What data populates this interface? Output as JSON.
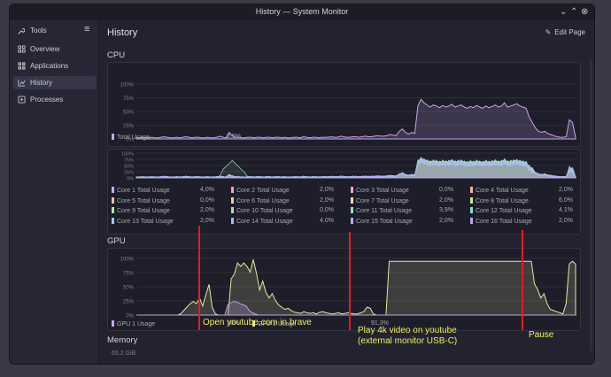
{
  "window": {
    "title": "History — System Monitor"
  },
  "sidebar": {
    "tools_label": "Tools",
    "items": [
      {
        "label": "Overview",
        "icon": "overview-icon"
      },
      {
        "label": "Applications",
        "icon": "applications-icon"
      },
      {
        "label": "History",
        "icon": "history-icon",
        "active": true
      },
      {
        "label": "Processes",
        "icon": "processes-icon"
      }
    ]
  },
  "header": {
    "title": "History",
    "edit_label": "Edit Page"
  },
  "cpu": {
    "section_label": "CPU",
    "y_ticks": [
      "100%",
      "75%",
      "50%",
      "25%",
      "0%"
    ],
    "total_legend": {
      "label": "Total Usage",
      "value": "2,5%",
      "color": "#c9a5e8"
    },
    "small_y_ticks": [
      "100%",
      "75%",
      "50%",
      "25%",
      "0%"
    ],
    "cores": [
      {
        "label": "Core 1 Total Usage",
        "value": "4,0%",
        "color": "#d3a6f0"
      },
      {
        "label": "Core 2 Total Usage",
        "value": "2,0%",
        "color": "#f29ed6"
      },
      {
        "label": "Core 3 Total Usage",
        "value": "0,0%",
        "color": "#f3a8c4"
      },
      {
        "label": "Core 4 Total Usage",
        "value": "2,0%",
        "color": "#f4b3a3"
      },
      {
        "label": "Core 5 Total Usage",
        "value": "0,0%",
        "color": "#f2bd9a"
      },
      {
        "label": "Core 6 Total Usage",
        "value": "2,0%",
        "color": "#f0cf8e"
      },
      {
        "label": "Core 7 Total Usage",
        "value": "2,0%",
        "color": "#e7e290"
      },
      {
        "label": "Core 8 Total Usage",
        "value": "6,0%",
        "color": "#cfe796"
      },
      {
        "label": "Core 9 Total Usage",
        "value": "2,0%",
        "color": "#b6e7a0"
      },
      {
        "label": "Core 10 Total Usage",
        "value": "0,0%",
        "color": "#9ee6b0"
      },
      {
        "label": "Core 11 Total Usage",
        "value": "3,9%",
        "color": "#8fe3c6"
      },
      {
        "label": "Core 12 Total Usage",
        "value": "4,1%",
        "color": "#8fd9de"
      },
      {
        "label": "Core 13 Total Usage",
        "value": "2,0%",
        "color": "#92cde9"
      },
      {
        "label": "Core 14 Total Usage",
        "value": "4,0%",
        "color": "#9cc0f0"
      },
      {
        "label": "Core 15 Total Usage",
        "value": "2,0%",
        "color": "#aab3f3"
      },
      {
        "label": "Core 16 Total Usage",
        "value": "2,0%",
        "color": "#bba7f2"
      }
    ]
  },
  "gpu": {
    "section_label": "GPU",
    "y_ticks": [
      "100%",
      "75%",
      "50%",
      "25%",
      "0%"
    ],
    "legend": [
      {
        "label": "GPU 1 Usage",
        "value": "18%",
        "color": "#c9a5e8"
      },
      {
        "label": "GPU 2 Usage",
        "value": "91,3%",
        "color": "#e8e6a0"
      }
    ]
  },
  "memory": {
    "section_label": "Memory",
    "first_tick": "65,2 GiB"
  },
  "annotations": [
    {
      "text": "Open youtube.com in brave"
    },
    {
      "text": "Play 4k video on youtube\n(external monitor USB-C)"
    },
    {
      "text": "Pause"
    }
  ],
  "colors": {
    "cpu_line": "#c9a5e8",
    "gpu1_line": "#b9a2e0",
    "gpu2_line": "#e8e6a0",
    "annotation_line": "#e51b25",
    "annotation_text": "#f2ee5e"
  },
  "chart_data": [
    {
      "type": "area",
      "title": "CPU",
      "series": [
        {
          "name": "Total Usage",
          "values": [
            2,
            2,
            3,
            2,
            2,
            3,
            2,
            2,
            3,
            4,
            3,
            2,
            2,
            3,
            2,
            3,
            4,
            3,
            2,
            3,
            3,
            2,
            2,
            3,
            2,
            2,
            3,
            5,
            3,
            2,
            12,
            6,
            3,
            3,
            2,
            2,
            3,
            3,
            2,
            3,
            3,
            2,
            3,
            3,
            2,
            3,
            3,
            2,
            3,
            2,
            2,
            3,
            3,
            2,
            4,
            3,
            2,
            3,
            3,
            2,
            3,
            3,
            3,
            4,
            3,
            3,
            5,
            4,
            3,
            3,
            4,
            4,
            3,
            4,
            5,
            4,
            4,
            5,
            6,
            5,
            5,
            6,
            8,
            7,
            6,
            14,
            18,
            12,
            9,
            12,
            10,
            60,
            72,
            66,
            62,
            58,
            62,
            60,
            57,
            61,
            58,
            60,
            63,
            58,
            60,
            62,
            58,
            56,
            59,
            57,
            61,
            58,
            56,
            60,
            57,
            59,
            62,
            58,
            60,
            66,
            58,
            60,
            62,
            64,
            60,
            58,
            56,
            40,
            30,
            20,
            14,
            12,
            14,
            10,
            8,
            6,
            4,
            3,
            3,
            4,
            35,
            30,
            3
          ]
        }
      ],
      "ylim": [
        0,
        100
      ]
    },
    {
      "type": "area",
      "title": "GPU",
      "series": [
        {
          "name": "GPU 1 Usage",
          "values": [
            0,
            0,
            0,
            0,
            0,
            0,
            0,
            0,
            0,
            0,
            0,
            0,
            0,
            0,
            0,
            0,
            0,
            0,
            0,
            0,
            0,
            0,
            0,
            0,
            0,
            0,
            0,
            0,
            0,
            0,
            18,
            22,
            24,
            23,
            20,
            18,
            16,
            8,
            4,
            2,
            0,
            0,
            0,
            0,
            0,
            0,
            0,
            0,
            0,
            0,
            0,
            0,
            0,
            0,
            0,
            0,
            0,
            0,
            0,
            0,
            0,
            0,
            0,
            0,
            0,
            0,
            0,
            0,
            0,
            0,
            0,
            0,
            0,
            0,
            0,
            0,
            0,
            0,
            0,
            0,
            0,
            0,
            0,
            0,
            0,
            0,
            0,
            0,
            0,
            0,
            0,
            0,
            0,
            0,
            0,
            0,
            0,
            0,
            0,
            0,
            0,
            0,
            0,
            0,
            0,
            0,
            0,
            0,
            0,
            0,
            0,
            0,
            0,
            0,
            0,
            0,
            0,
            0,
            0,
            0,
            0,
            0,
            0,
            0,
            0,
            0,
            0,
            0,
            0,
            0,
            0,
            0,
            0,
            0,
            0,
            0,
            0,
            0,
            0,
            0,
            0,
            0,
            0,
            0,
            0
          ]
        },
        {
          "name": "GPU 2 Usage",
          "values": [
            0,
            0,
            0,
            0,
            0,
            0,
            0,
            0,
            0,
            0,
            0,
            0,
            0,
            0,
            2,
            8,
            14,
            20,
            24,
            20,
            30,
            16,
            36,
            54,
            14,
            2,
            0,
            0,
            0,
            0,
            64,
            72,
            92,
            86,
            92,
            86,
            76,
            98,
            74,
            44,
            60,
            40,
            30,
            38,
            26,
            18,
            14,
            10,
            12,
            8,
            5,
            4,
            3,
            6,
            4,
            3,
            4,
            2,
            5,
            6,
            4,
            3,
            2,
            3,
            4,
            2,
            3,
            4,
            3,
            2,
            2,
            4,
            6,
            14,
            12,
            2,
            0,
            0,
            0,
            0,
            95,
            95,
            95,
            95,
            95,
            95,
            95,
            95,
            95,
            95,
            95,
            95,
            95,
            95,
            95,
            95,
            95,
            95,
            95,
            95,
            95,
            95,
            95,
            95,
            95,
            95,
            95,
            95,
            95,
            95,
            95,
            95,
            95,
            95,
            95,
            95,
            95,
            95,
            95,
            95,
            95,
            95,
            95,
            95,
            95,
            95,
            55,
            45,
            30,
            38,
            20,
            10,
            8,
            6,
            4,
            2,
            20,
            90,
            95,
            90
          ]
        }
      ],
      "ylim": [
        0,
        100
      ]
    }
  ]
}
